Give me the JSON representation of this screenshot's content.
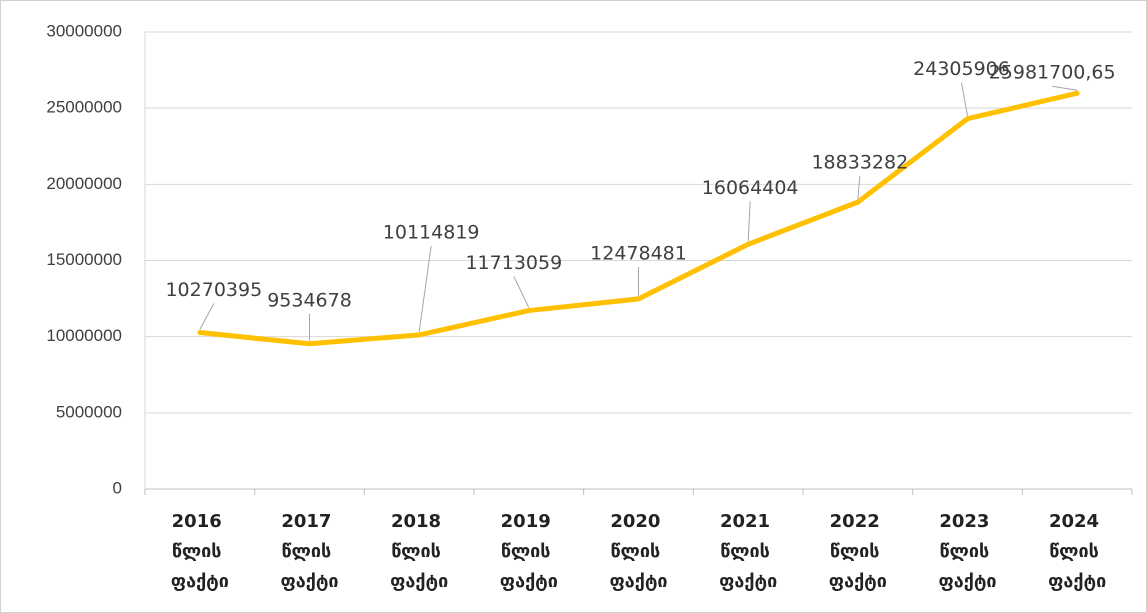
{
  "chart_data": {
    "type": "line",
    "categories": [
      "2016 წლის ფაქტი",
      "2017 წლის ფაქტი",
      "2018 წლის ფაქტი",
      "2019 წლის ფაქტი",
      "2020 წლის ფაქტი",
      "2021 წლის ფაქტი",
      "2022 წლის ფაქტი",
      "2023 წლის ფაქტი",
      "2024 წლის ფაქტი"
    ],
    "values": [
      10270395,
      9534678,
      10114819,
      11713059,
      12478481,
      16064404,
      18833282,
      24305906,
      25981700.65
    ],
    "value_labels": [
      "10270395",
      "9534678",
      "10114819",
      "11713059",
      "12478481",
      "16064404",
      "18833282",
      "24305906",
      "25981700,65"
    ],
    "color": "#ffc000",
    "ylim": [
      0,
      30000000
    ],
    "yticks": [
      0,
      5000000,
      10000000,
      15000000,
      20000000,
      25000000,
      30000000
    ],
    "grid": true
  }
}
